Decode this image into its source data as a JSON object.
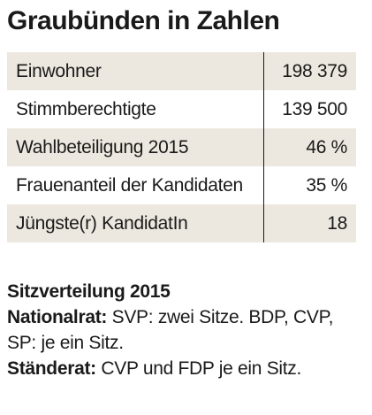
{
  "title": "Graubünden in Zahlen",
  "stats": [
    {
      "label": "Einwohner",
      "value": "198 379"
    },
    {
      "label": "Stimmberechtigte",
      "value": "139 500"
    },
    {
      "label": "Wahlbeteiligung 2015",
      "value": "46 %"
    },
    {
      "label": "Frauenanteil der Kandidaten",
      "value": "35 %"
    },
    {
      "label": "Jüngste(r) KandidatIn",
      "value": "18"
    }
  ],
  "seats": {
    "heading": "Sitzverteilung 2015",
    "nationalrat_label": "Nationalrat:",
    "nationalrat_text": " SVP: zwei Sitze. BDP, CVP, SP: je ein Sitz.",
    "staenderat_label": "Ständerat:",
    "staenderat_text": " CVP und FDP je ein Sitz."
  },
  "colors": {
    "row_shade": "#ede8df",
    "text": "#1a1a1a"
  }
}
